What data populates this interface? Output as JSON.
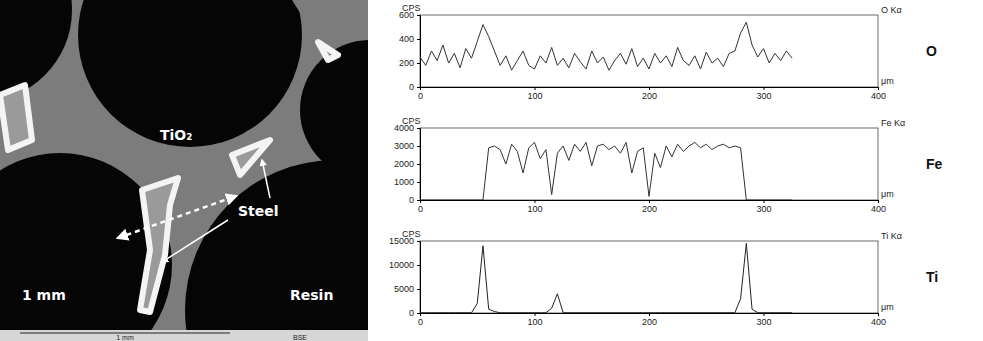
{
  "micrograph": {
    "labels": [
      "TiO₂",
      "Steel",
      "Resin",
      "1 mm"
    ],
    "scale_bar": "1 mm",
    "detector": "BSE"
  },
  "chart_data": [
    {
      "type": "line",
      "title": "O Kα",
      "y_label": "CPS",
      "x_label": "μm",
      "annotations": [
        "O"
      ],
      "color": "#333333",
      "xlim": [
        0,
        400
      ],
      "xticks": [
        0,
        100,
        200,
        300,
        400
      ],
      "ylim": [
        0,
        600
      ],
      "yticks": [
        0,
        200,
        400,
        600
      ],
      "x": [
        0,
        5,
        10,
        15,
        20,
        25,
        30,
        35,
        40,
        45,
        50,
        55,
        60,
        65,
        70,
        75,
        80,
        85,
        90,
        95,
        100,
        105,
        110,
        115,
        120,
        125,
        130,
        135,
        140,
        145,
        150,
        155,
        160,
        165,
        170,
        175,
        180,
        185,
        190,
        195,
        200,
        205,
        210,
        215,
        220,
        225,
        230,
        235,
        240,
        245,
        250,
        255,
        260,
        265,
        270,
        275,
        280,
        285,
        290,
        295,
        300,
        305,
        310,
        315,
        320,
        325
      ],
      "values": [
        250,
        180,
        300,
        220,
        350,
        200,
        280,
        160,
        320,
        240,
        380,
        520,
        420,
        300,
        180,
        260,
        140,
        220,
        300,
        180,
        150,
        260,
        200,
        330,
        180,
        240,
        160,
        280,
        210,
        150,
        300,
        200,
        250,
        140,
        220,
        280,
        190,
        320,
        170,
        240,
        150,
        280,
        200,
        260,
        170,
        330,
        220,
        180,
        260,
        150,
        290,
        200,
        240,
        170,
        280,
        300,
        450,
        540,
        350,
        250,
        320,
        200,
        280,
        220,
        300,
        240
      ]
    },
    {
      "type": "line",
      "title": "Fe Kα",
      "y_label": "CPS",
      "x_label": "μm",
      "annotations": [
        "Fe"
      ],
      "color": "#333333",
      "xlim": [
        0,
        400
      ],
      "xticks": [
        0,
        100,
        200,
        300,
        400
      ],
      "ylim": [
        0,
        4000
      ],
      "yticks": [
        0,
        1000,
        2000,
        3000,
        4000
      ],
      "x": [
        0,
        5,
        10,
        15,
        20,
        25,
        30,
        35,
        40,
        45,
        50,
        55,
        60,
        65,
        70,
        75,
        80,
        85,
        90,
        95,
        100,
        105,
        110,
        115,
        120,
        125,
        130,
        135,
        140,
        145,
        150,
        155,
        160,
        165,
        170,
        175,
        180,
        185,
        190,
        195,
        200,
        205,
        210,
        215,
        220,
        225,
        230,
        235,
        240,
        245,
        250,
        255,
        260,
        265,
        270,
        275,
        280,
        285,
        290,
        295,
        300,
        305,
        310,
        315,
        320,
        325
      ],
      "values": [
        0,
        0,
        0,
        0,
        0,
        0,
        0,
        0,
        0,
        0,
        0,
        0,
        2900,
        3000,
        2800,
        2000,
        3100,
        2700,
        1500,
        2900,
        3200,
        2300,
        2800,
        300,
        2600,
        3000,
        2200,
        3100,
        2700,
        3200,
        1900,
        3000,
        3100,
        2800,
        3000,
        2600,
        3200,
        1500,
        2700,
        2900,
        200,
        2600,
        1800,
        3000,
        2400,
        3100,
        2700,
        3000,
        3200,
        2900,
        3100,
        2800,
        3000,
        3100,
        2900,
        3000,
        2900,
        0,
        0,
        0,
        0,
        0,
        0,
        0,
        0,
        0
      ]
    },
    {
      "type": "line",
      "title": "Ti Kα",
      "y_label": "CPS",
      "x_label": "μm",
      "annotations": [
        "Ti"
      ],
      "color": "#222222",
      "xlim": [
        0,
        400
      ],
      "xticks": [
        0,
        100,
        200,
        300,
        400
      ],
      "ylim": [
        0,
        15000
      ],
      "yticks": [
        0,
        5000,
        10000,
        15000
      ],
      "x": [
        0,
        5,
        10,
        15,
        20,
        25,
        30,
        35,
        40,
        45,
        50,
        55,
        60,
        65,
        70,
        75,
        80,
        85,
        90,
        95,
        100,
        105,
        110,
        115,
        120,
        125,
        130,
        135,
        140,
        145,
        150,
        155,
        160,
        165,
        170,
        175,
        180,
        185,
        190,
        195,
        200,
        205,
        210,
        215,
        220,
        225,
        230,
        235,
        240,
        245,
        250,
        255,
        260,
        265,
        270,
        275,
        280,
        285,
        290,
        295,
        300,
        305,
        310,
        315,
        320,
        325
      ],
      "values": [
        50,
        50,
        50,
        50,
        50,
        50,
        50,
        50,
        50,
        50,
        2000,
        14000,
        800,
        300,
        50,
        50,
        50,
        50,
        50,
        50,
        50,
        50,
        50,
        1000,
        4000,
        50,
        50,
        50,
        50,
        50,
        50,
        50,
        50,
        50,
        50,
        50,
        50,
        50,
        50,
        50,
        50,
        50,
        50,
        50,
        50,
        50,
        50,
        50,
        50,
        50,
        50,
        50,
        50,
        50,
        50,
        50,
        3000,
        14500,
        800,
        50,
        50,
        50,
        50,
        50,
        50,
        50
      ]
    }
  ]
}
